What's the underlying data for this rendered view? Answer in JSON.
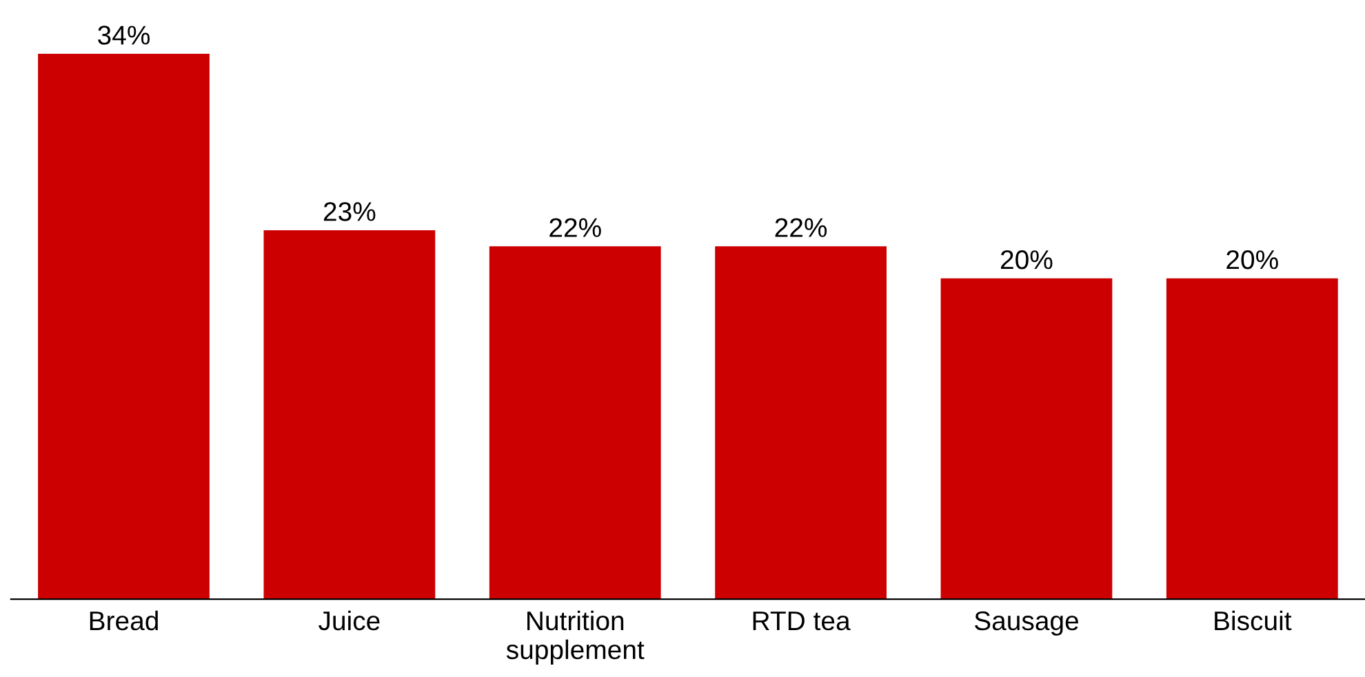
{
  "chart_data": {
    "type": "bar",
    "categories": [
      "Bread",
      "Juice",
      "Nutrition\nsupplement",
      "RTD tea",
      "Sausage",
      "Biscuit"
    ],
    "values": [
      34,
      23,
      22,
      22,
      20,
      20
    ],
    "value_labels": [
      "34%",
      "23%",
      "22%",
      "22%",
      "20%",
      "20%"
    ],
    "color": "#cc0000",
    "grid": false,
    "legend": false
  }
}
